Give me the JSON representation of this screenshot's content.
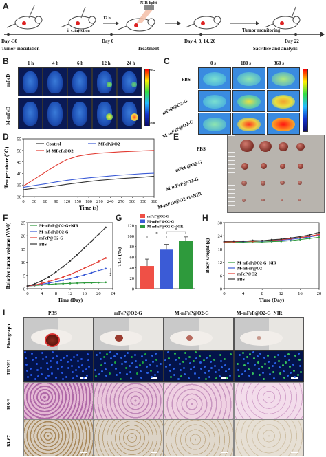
{
  "panels": {
    "A": "A",
    "B": "B",
    "C": "C",
    "D": "D",
    "E": "E",
    "F": "F",
    "G": "G",
    "H": "H",
    "I": "I"
  },
  "timeline": {
    "nir_light": "NIR light",
    "hours": "12 h",
    "injection": "i. v. injection",
    "day_start": "Day -30",
    "day0": "Day 0",
    "days_treat": "Day 4, 8, 14, 20",
    "day22": "Day 22",
    "tumor_inoculation": "Tumor inoculation",
    "treatment": "Treatment",
    "tumor_monitoring": "Tumor monitoring",
    "sacrifice": "Sacrifice and analysis"
  },
  "panel_b": {
    "times": [
      "1 h",
      "4 h",
      "6 h",
      "12 h",
      "24 h"
    ],
    "rows": [
      "mFeD",
      "M-mFeD"
    ],
    "colorbar_top": "Max",
    "colorbar_bottom": "Min"
  },
  "panel_c": {
    "times": [
      "0 s",
      "180 s",
      "360 s"
    ],
    "rows": [
      "PBS",
      "mFeP@O2-G",
      "M-mFeP@O2-G"
    ]
  },
  "panel_d": {
    "ylabel": "Temperature (°C)",
    "xlabel": "Time (s)",
    "legend": [
      "Control",
      "MFeP@O2",
      "M-MFeP@O2"
    ]
  },
  "panel_e": {
    "rows": [
      "PBS",
      "mFeP@O2-G",
      "M-mFeP@O2-G",
      "M-mFeP@O2-G+NIR"
    ]
  },
  "panel_f": {
    "ylabel": "Relative tumor volume (V/V0)",
    "xlabel": "Time (Day)",
    "legend": [
      "M-mFeP@O2-G+NIR",
      "M-mFeP@O2-G",
      "mFeP@O2-G",
      "PBS"
    ],
    "sig": "****"
  },
  "panel_g": {
    "ylabel": "TGI (%)",
    "legend": [
      "mFeP@O2-G",
      "M-mFeP@O2-G",
      "M-mFeP@O2-G+NIR"
    ],
    "sig": "*"
  },
  "panel_h": {
    "ylabel": "Body weight (g)",
    "xlabel": "Time (Day)",
    "legend": [
      "M-mFeP@O2-G+NIR",
      "M-mFeP@O2",
      "mFeP@O2",
      "PBS"
    ]
  },
  "panel_i": {
    "columns": [
      "PBS",
      "mFeP@O2-G",
      "M-mFeP@O2-G",
      "M-mFeP@O2-G+NIR"
    ],
    "rows": [
      "Photograph",
      "TUNEL",
      "H&E",
      "Ki-67"
    ]
  },
  "chart_data": [
    {
      "id": "D",
      "type": "line",
      "xlabel": "Time (s)",
      "ylabel": "Temperature (°C)",
      "xlim": [
        0,
        360
      ],
      "ylim": [
        30,
        55
      ],
      "xticks": [
        0,
        30,
        60,
        90,
        120,
        150,
        180,
        210,
        240,
        270,
        300,
        330,
        360
      ],
      "yticks": [
        30,
        35,
        40,
        45,
        50,
        55
      ],
      "x": [
        0,
        30,
        60,
        90,
        120,
        150,
        180,
        210,
        240,
        270,
        300,
        330,
        360
      ],
      "series": [
        {
          "name": "Control",
          "color": "#333333",
          "values": [
            33,
            33.6,
            34,
            34.6,
            35.3,
            35.9,
            36.5,
            37,
            37.4,
            37.8,
            38.1,
            38.4,
            38.8
          ]
        },
        {
          "name": "MFeP@O2",
          "color": "#3b5bd6",
          "values": [
            34,
            34.8,
            35.5,
            36.3,
            37,
            37.6,
            38.1,
            38.5,
            38.9,
            39.3,
            39.6,
            39.9,
            40.1
          ]
        },
        {
          "name": "M-MFeP@O2",
          "color": "#e23b32",
          "values": [
            34.5,
            37.5,
            40.5,
            43.5,
            46,
            47.5,
            48.3,
            48.8,
            49.1,
            49.4,
            49.6,
            49.8,
            50
          ]
        }
      ]
    },
    {
      "id": "F",
      "type": "line",
      "xlabel": "Time (Day)",
      "ylabel": "Relative tumor volume (V/V0)",
      "xlim": [
        0,
        24
      ],
      "ylim": [
        0,
        25
      ],
      "xticks": [
        0,
        4,
        8,
        12,
        16,
        20,
        24
      ],
      "yticks": [
        0,
        5,
        10,
        15,
        20,
        25
      ],
      "x": [
        0,
        2,
        4,
        6,
        8,
        10,
        12,
        14,
        16,
        18,
        20,
        22
      ],
      "series": [
        {
          "name": "M-mFeP@O2-G+NIR",
          "color": "#2e9a3c",
          "values": [
            1,
            1.2,
            1.4,
            1.6,
            1.8,
            1.9,
            2,
            2.1,
            2.2,
            2.2,
            2.3,
            2.4
          ]
        },
        {
          "name": "M-mFeP@O2-G",
          "color": "#3b5bd6",
          "values": [
            1,
            1.3,
            1.7,
            2.1,
            2.6,
            3.2,
            3.8,
            4.5,
            5.2,
            6,
            6.8,
            7.6
          ]
        },
        {
          "name": "mFeP@O2-G",
          "color": "#e23b32",
          "values": [
            1,
            1.4,
            2,
            2.7,
            3.5,
            4.4,
            5.4,
            6.5,
            7.7,
            9,
            10.3,
            11.6
          ]
        },
        {
          "name": "PBS",
          "color": "#333333",
          "values": [
            1,
            1.8,
            3,
            4.5,
            6.3,
            8.3,
            10.5,
            12.9,
            15.4,
            18,
            20.6,
            23.2
          ]
        }
      ]
    },
    {
      "id": "G",
      "type": "bar",
      "ylabel": "TGI (%)",
      "ylim": [
        0,
        120
      ],
      "yticks": [
        0,
        20,
        40,
        60,
        80,
        100,
        120
      ],
      "categories": [
        "mFeP@O2-G",
        "M-mFeP@O2-G",
        "M-mFeP@O2-G+NIR"
      ],
      "values": [
        43,
        74,
        90
      ],
      "errors": [
        13,
        10,
        8
      ],
      "colors": [
        "#ef5046",
        "#3b5bd6",
        "#2e9a3c"
      ]
    },
    {
      "id": "H",
      "type": "line",
      "xlabel": "Time (Day)",
      "ylabel": "Body weight (g)",
      "xlim": [
        0,
        20
      ],
      "ylim": [
        0,
        30
      ],
      "xticks": [
        0,
        4,
        8,
        12,
        16,
        20
      ],
      "yticks": [
        0,
        6,
        12,
        18,
        24,
        30
      ],
      "x": [
        0,
        2,
        4,
        6,
        8,
        10,
        12,
        14,
        16,
        18,
        20
      ],
      "series": [
        {
          "name": "M-mFeP@O2-G+NIR",
          "color": "#2e9a3c",
          "values": [
            21,
            21.2,
            21.1,
            21.3,
            21.2,
            21.4,
            21.5,
            21.8,
            22.3,
            22.8,
            23.3
          ]
        },
        {
          "name": "M-mFeP@O2",
          "color": "#3b5bd6",
          "values": [
            21.3,
            21.5,
            21.4,
            21.7,
            21.6,
            21.8,
            22,
            22.4,
            22.9,
            23.5,
            24.2
          ]
        },
        {
          "name": "mFeP@O2",
          "color": "#e23b32",
          "values": [
            21.2,
            21.3,
            21.6,
            21.5,
            21.8,
            22,
            22.3,
            22.7,
            23.2,
            23.8,
            24.6
          ]
        },
        {
          "name": "PBS",
          "color": "#333333",
          "values": [
            21.5,
            21.6,
            21.5,
            21.9,
            21.8,
            22.2,
            22.5,
            23,
            23.6,
            24.4,
            25.5
          ]
        }
      ]
    }
  ]
}
